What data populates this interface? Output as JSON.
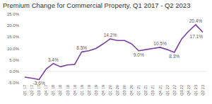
{
  "chart_data": {
    "type": "line",
    "title": "Premium Change for Commercial Property, Q1 2017 - Q2 2023",
    "categories": [
      "Q1 17",
      "Q2 17",
      "Q3 17",
      "Q4 17",
      "Q1 18",
      "Q2 18",
      "Q3 18",
      "Q4 18",
      "Q1 19",
      "Q2 19",
      "Q3 19",
      "Q4 19",
      "Q1 20",
      "Q2 20",
      "Q3 20",
      "Q4 20",
      "Q1 21",
      "Q2 21",
      "Q3 21",
      "Q4 21",
      "Q1 22",
      "Q2 22",
      "Q3 22",
      "Q4 22",
      "Q1 23",
      "Q2 23"
    ],
    "values": [
      -2.5,
      -3.0,
      -3.6,
      1.0,
      3.4,
      2.0,
      2.8,
      3.0,
      8.5,
      9.0,
      10.0,
      12.0,
      14.2,
      13.5,
      13.5,
      12.0,
      9.0,
      9.5,
      10.0,
      10.5,
      9.5,
      8.3,
      14.0,
      17.5,
      20.4,
      17.1
    ],
    "value_labels": [
      null,
      null,
      "-3.6%",
      null,
      "3.4%",
      null,
      null,
      null,
      "8.5%",
      null,
      null,
      null,
      "14.2%",
      null,
      null,
      null,
      "9.0%",
      null,
      null,
      "10.5%",
      null,
      "8.3%",
      null,
      null,
      "20.4%",
      "17.1%"
    ],
    "data_labels": true,
    "color": "#7b3fa0",
    "ylim": [
      -5,
      25
    ],
    "yticks": [
      {
        "value": -5,
        "label": "-5.0%"
      },
      {
        "value": 0,
        "label": "0.0%"
      },
      {
        "value": 5,
        "label": "5.0%"
      },
      {
        "value": 10,
        "label": "10.0%"
      },
      {
        "value": 15,
        "label": "15.0%"
      },
      {
        "value": 20,
        "label": "20.0%"
      },
      {
        "value": 25,
        "label": "25.0%"
      }
    ],
    "grid": false
  }
}
